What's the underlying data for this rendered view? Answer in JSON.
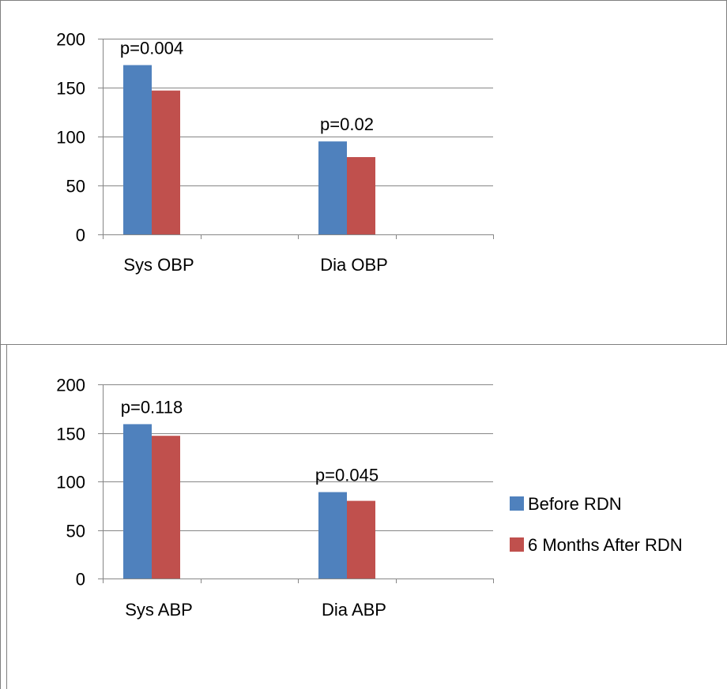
{
  "chart_data": [
    {
      "type": "bar",
      "categories": [
        "Sys OBP",
        "Dia OBP"
      ],
      "series": [
        {
          "name": "Before RDN",
          "values": [
            173,
            95
          ]
        },
        {
          "name": "6 Months After RDN",
          "values": [
            147,
            79
          ]
        }
      ],
      "annotations": [
        "p=0.004",
        "p=0.02"
      ],
      "ylim": [
        0,
        200
      ],
      "yticks": [
        0,
        50,
        100,
        150,
        200
      ],
      "grid": true,
      "legend": "none"
    },
    {
      "type": "bar",
      "categories": [
        "Sys ABP",
        "Dia ABP"
      ],
      "series": [
        {
          "name": "Before RDN",
          "values": [
            159,
            89
          ]
        },
        {
          "name": "6 Months After RDN",
          "values": [
            147,
            80
          ]
        }
      ],
      "annotations": [
        "p=0.118",
        "p=0.045"
      ],
      "ylim": [
        0,
        200
      ],
      "yticks": [
        0,
        50,
        100,
        150,
        200
      ],
      "grid": true,
      "legend": "right"
    }
  ],
  "legend": [
    {
      "label": "Before RDN",
      "color": "#4F81BD"
    },
    {
      "label": "6 Months After RDN",
      "color": "#C0504D"
    }
  ]
}
